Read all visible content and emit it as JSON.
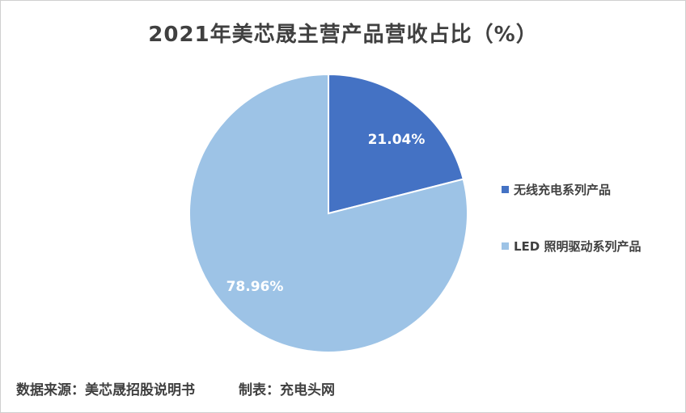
{
  "chart_data": {
    "type": "pie",
    "title": "2021年美芯晟主营产品营收占比（%）",
    "series": [
      {
        "name": "无线充电系列产品",
        "value": 21.04,
        "label": "21.04%",
        "color": "#4472c4"
      },
      {
        "name": "LED 照明驱动系列产品",
        "value": 78.96,
        "label": "78.96%",
        "color": "#9dc3e6"
      }
    ],
    "start_angle": "12 o'clock",
    "direction": "clockwise",
    "legend": "right"
  },
  "footer": {
    "source": "数据来源：美芯晟招股说明书",
    "credit": "制表：充电头网"
  }
}
